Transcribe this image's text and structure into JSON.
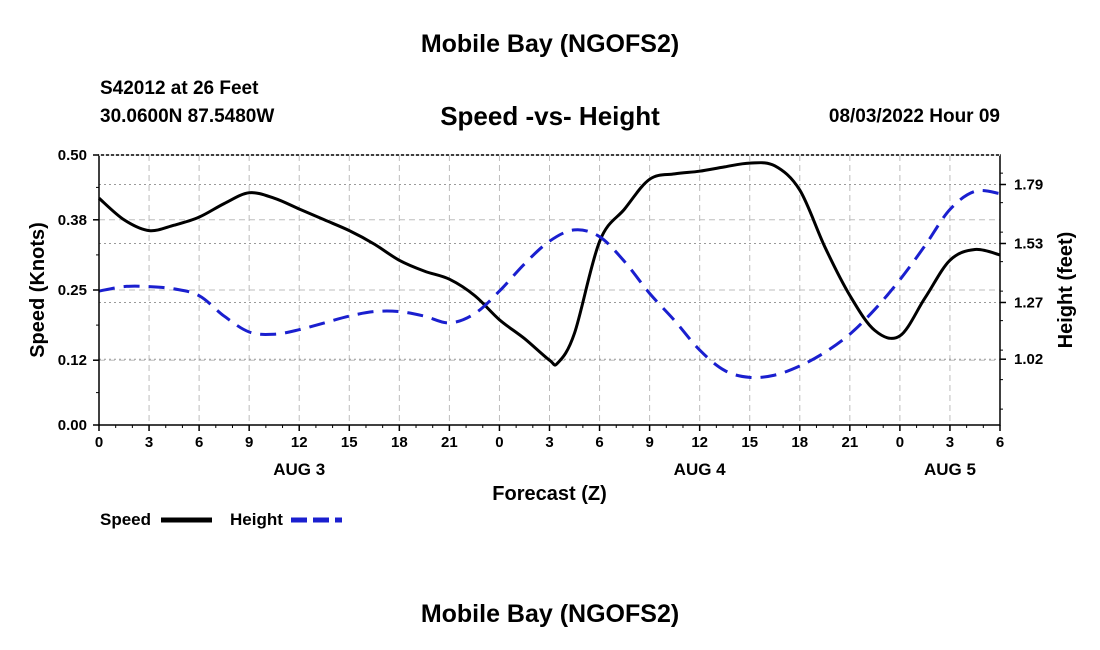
{
  "header": {
    "title": "Mobile Bay (NGOFS2)",
    "station": "S42012 at 26 Feet",
    "coords": "30.0600N  87.5480W",
    "subtitle": "Speed -vs- Height",
    "datestamp": "08/03/2022 Hour 09"
  },
  "footer": {
    "title": "Mobile Bay (NGOFS2)"
  },
  "chart_data": {
    "type": "line",
    "xlabel": "Forecast (Z)",
    "x_unit": "hours since 08/03 00Z",
    "xlim": [
      0,
      54
    ],
    "x_ticks": [
      0,
      3,
      6,
      9,
      12,
      15,
      18,
      21,
      24,
      27,
      30,
      33,
      36,
      39,
      42,
      45,
      48,
      51,
      54
    ],
    "x_tick_labels": [
      "0",
      "3",
      "6",
      "9",
      "12",
      "15",
      "18",
      "21",
      "0",
      "3",
      "6",
      "9",
      "12",
      "15",
      "18",
      "21",
      "0",
      "3",
      "6"
    ],
    "day_labels": [
      {
        "x": 12,
        "label": "AUG 3"
      },
      {
        "x": 36,
        "label": "AUG 4"
      },
      {
        "x": 51,
        "label": "AUG 5"
      }
    ],
    "y_left": {
      "label": "Speed (Knots)",
      "lim": [
        0,
        0.5
      ],
      "ticks": [
        0.0,
        0.12,
        0.25,
        0.38,
        0.5
      ],
      "tick_labels": [
        "0.00",
        "0.12",
        "0.25",
        "0.38",
        "0.50"
      ]
    },
    "y_right": {
      "label": "Height (feet)",
      "lim": [
        0.73,
        1.92
      ],
      "ticks": [
        1.02,
        1.27,
        1.53,
        1.79
      ],
      "tick_labels": [
        "1.02",
        "1.27",
        "1.53",
        "1.79"
      ]
    },
    "grid": true,
    "legend_placement": "bottom-left",
    "series": [
      {
        "name": "Speed",
        "axis": "left",
        "color": "#000000",
        "dash": "solid",
        "x": [
          0,
          1.5,
          3,
          4.5,
          6,
          7.5,
          9,
          10.5,
          12,
          13.5,
          15,
          16.5,
          18,
          19.5,
          21,
          22.5,
          24,
          25.5,
          27,
          27.5,
          28.5,
          30,
          31.5,
          33,
          34.5,
          36,
          37.5,
          39,
          40.5,
          42,
          43.5,
          45,
          46.5,
          48,
          49.5,
          51,
          52.5,
          54
        ],
        "values": [
          0.42,
          0.38,
          0.36,
          0.37,
          0.385,
          0.41,
          0.43,
          0.42,
          0.4,
          0.38,
          0.36,
          0.335,
          0.305,
          0.285,
          0.27,
          0.24,
          0.195,
          0.16,
          0.12,
          0.115,
          0.17,
          0.34,
          0.4,
          0.455,
          0.465,
          0.47,
          0.478,
          0.485,
          0.48,
          0.435,
          0.33,
          0.24,
          0.175,
          0.165,
          0.235,
          0.305,
          0.325,
          0.315
        ]
      },
      {
        "name": "Height",
        "axis": "right",
        "color": "#1a1fcf",
        "dash": "dashed",
        "x": [
          0,
          1.5,
          3,
          4.5,
          6,
          7.5,
          9,
          10.5,
          12,
          13.5,
          15,
          16.5,
          18,
          19.5,
          21,
          22.5,
          24,
          25.5,
          27,
          28.5,
          30,
          31.5,
          33,
          34.5,
          36,
          37.5,
          39,
          40.5,
          42,
          43.5,
          45,
          46.5,
          48,
          49.5,
          51,
          52.5,
          54
        ],
        "values": [
          1.32,
          1.34,
          1.34,
          1.33,
          1.3,
          1.21,
          1.14,
          1.13,
          1.15,
          1.18,
          1.21,
          1.23,
          1.23,
          1.21,
          1.18,
          1.22,
          1.32,
          1.44,
          1.54,
          1.59,
          1.56,
          1.45,
          1.31,
          1.19,
          1.06,
          0.97,
          0.94,
          0.95,
          0.99,
          1.05,
          1.13,
          1.24,
          1.37,
          1.52,
          1.68,
          1.76,
          1.75
        ]
      }
    ]
  }
}
